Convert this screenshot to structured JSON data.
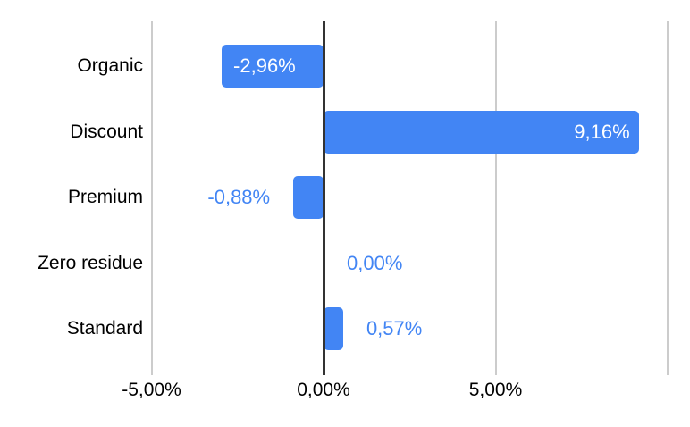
{
  "chart_data": {
    "type": "bar",
    "orientation": "horizontal",
    "title": "",
    "legend": "none",
    "categories": [
      "Organic",
      "Discount",
      "Premium",
      "Zero residue",
      "Standard"
    ],
    "values": [
      -2.96,
      9.16,
      -0.88,
      0,
      0.57
    ],
    "data_labels": [
      "-2,96%",
      "9,16%",
      "-0,88%",
      "0,00%",
      "0,57%"
    ],
    "x_axis": {
      "grid": true,
      "tick_step_percent": 5,
      "range_visible": [
        -5,
        10
      ],
      "ticks": [
        {
          "value": -5,
          "label": "-5,00%"
        },
        {
          "value": 0,
          "label": "0,00%"
        },
        {
          "value": 5,
          "label": "5,00%"
        },
        {
          "value": 10,
          "label": ""
        }
      ]
    },
    "colors": {
      "bar": "#4285f4",
      "data_label_inside": "#ffffff",
      "data_label_outside": "#4285f4",
      "category_text": "#000000",
      "axis_text": "#000000",
      "zero_line": "#333333",
      "gridline": "#cccccc",
      "background": "#ffffff"
    }
  }
}
